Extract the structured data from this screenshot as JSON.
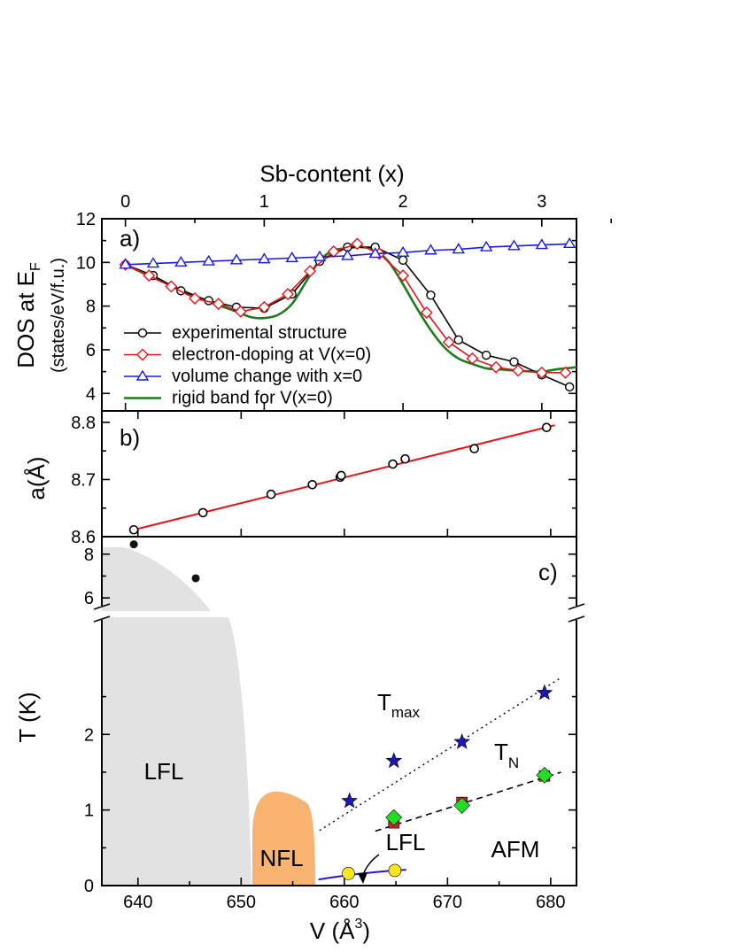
{
  "chart_data": [
    {
      "type": "line",
      "panel_label": "a)",
      "top_axis": {
        "label": "Sb-content (x)",
        "ticks": [
          0,
          1,
          2,
          3
        ],
        "range": [
          -0.17,
          3.25
        ]
      },
      "ylabel_line1": "DOS at E",
      "ylabel_sub": "F",
      "ylabel_line2": "(states/eV/f.u.)",
      "ylim": [
        3.2,
        12
      ],
      "yticks": [
        4,
        6,
        8,
        10,
        12
      ],
      "series": [
        {
          "name": "experimental structure",
          "color": "#000000",
          "marker": "circle",
          "x": [
            0,
            0.2,
            0.4,
            0.6,
            0.8,
            1.0,
            1.2,
            1.4,
            1.6,
            1.8,
            2.0,
            2.2,
            2.4,
            2.6,
            2.8,
            3.0,
            3.2
          ],
          "y": [
            9.9,
            9.4,
            8.7,
            8.25,
            7.95,
            7.9,
            8.55,
            10.05,
            10.7,
            10.7,
            10.1,
            8.5,
            6.45,
            5.75,
            5.45,
            4.85,
            4.3
          ]
        },
        {
          "name": "electron-doping at V(x=0)",
          "color": "#e3141b",
          "marker": "diamond",
          "x": [
            0,
            0.17,
            0.33,
            0.5,
            0.67,
            0.83,
            1.0,
            1.17,
            1.33,
            1.5,
            1.67,
            1.83,
            2.0,
            2.17,
            2.33,
            2.5,
            2.67,
            2.83,
            3.0,
            3.17
          ],
          "y": [
            9.9,
            9.4,
            8.9,
            8.35,
            8.1,
            7.75,
            7.95,
            8.55,
            9.6,
            10.5,
            10.85,
            10.4,
            9.4,
            7.7,
            6.35,
            5.6,
            5.2,
            5.05,
            4.95,
            4.95
          ]
        },
        {
          "name": "volume change with x=0",
          "color": "#1a1ae0",
          "marker": "triangle",
          "x": [
            0,
            0.2,
            0.4,
            0.6,
            0.8,
            1.0,
            1.2,
            1.4,
            1.6,
            1.8,
            2.0,
            2.2,
            2.4,
            2.6,
            2.8,
            3.0,
            3.2
          ],
          "y": [
            9.9,
            9.95,
            10.0,
            10.05,
            10.1,
            10.15,
            10.2,
            10.25,
            10.3,
            10.4,
            10.45,
            10.55,
            10.6,
            10.7,
            10.75,
            10.8,
            10.85
          ]
        },
        {
          "name": "rigid band for V(x=0)",
          "color": "#1d7d1d",
          "marker": "none",
          "x": [
            0,
            0.2,
            0.4,
            0.6,
            0.8,
            0.9,
            1.0,
            1.1,
            1.2,
            1.3,
            1.4,
            1.5,
            1.6,
            1.7,
            1.8,
            1.9,
            2.0,
            2.1,
            2.2,
            2.3,
            2.4,
            2.5,
            2.6,
            2.7,
            2.8,
            3.0,
            3.1,
            3.25
          ],
          "y": [
            9.9,
            9.3,
            8.75,
            8.2,
            7.75,
            7.5,
            7.45,
            7.6,
            8.1,
            9.1,
            10.1,
            10.55,
            10.65,
            10.7,
            10.55,
            10.0,
            9.0,
            7.9,
            6.9,
            6.1,
            5.6,
            5.35,
            5.15,
            5.1,
            5.05,
            5.0,
            5.1,
            5.2
          ]
        }
      ]
    },
    {
      "type": "scatter",
      "panel_label": "b)",
      "ylabel": "a(Å)",
      "ylim": [
        8.6,
        8.82
      ],
      "yticks": [
        8.6,
        8.7,
        8.8
      ],
      "points": {
        "x": [
          639.6,
          646.3,
          652.9,
          656.9,
          659.6,
          659.7,
          664.7,
          665.9,
          672.6,
          679.6
        ],
        "y": [
          8.612,
          8.642,
          8.674,
          8.691,
          8.704,
          8.707,
          8.727,
          8.736,
          8.754,
          8.791
        ]
      },
      "fit": {
        "x": [
          639.6,
          680.4
        ],
        "y": [
          8.612,
          8.795
        ],
        "color": "#e3141b"
      }
    },
    {
      "type": "scatter",
      "panel_label": "c)",
      "xlabel": "V (Å",
      "xlabel_sup": "3",
      "xlabel_tail": ")",
      "ylabel": "T (K)",
      "xlim": [
        636.5,
        682.5
      ],
      "xticks": [
        640,
        650,
        660,
        670,
        680
      ],
      "upper_ylim": [
        5.4,
        8.8
      ],
      "upper_yticks": [
        6,
        8
      ],
      "lower_ylim": [
        0,
        3.55
      ],
      "lower_yticks": [
        0,
        1,
        2
      ],
      "regions": [
        {
          "label": "LFL",
          "color": "#e2e2e2"
        },
        {
          "label": "NFL",
          "color": "#f9b371"
        },
        {
          "label": "LFL",
          "color": "#ffffff"
        },
        {
          "label": "AFM",
          "color": "#ffffff"
        }
      ],
      "T_max_label": "T",
      "T_max_sub": "max",
      "T_N_label": "T",
      "T_N_sub": "N",
      "high_T_points": {
        "x": [
          639.6,
          645.6
        ],
        "y": [
          8.45,
          6.9
        ],
        "color": "#111111"
      },
      "T_max": {
        "x": [
          660.5,
          664.8,
          671.4,
          679.4
        ],
        "y": [
          1.12,
          1.65,
          1.9,
          2.55
        ],
        "color": "#1a1ab0"
      },
      "T_N_squares": {
        "x": [
          664.8,
          671.4,
          679.4
        ],
        "y": [
          0.83,
          1.1,
          1.45
        ],
        "color": "#cc2222"
      },
      "T_N_diamonds": {
        "x": [
          664.8,
          671.4,
          679.4
        ],
        "y": [
          0.9,
          1.06,
          1.46
        ],
        "color": "#22dd22"
      },
      "LFL_points": {
        "x": [
          660.4,
          664.9
        ],
        "y": [
          0.16,
          0.2
        ],
        "color": "#ffe81a"
      }
    }
  ]
}
